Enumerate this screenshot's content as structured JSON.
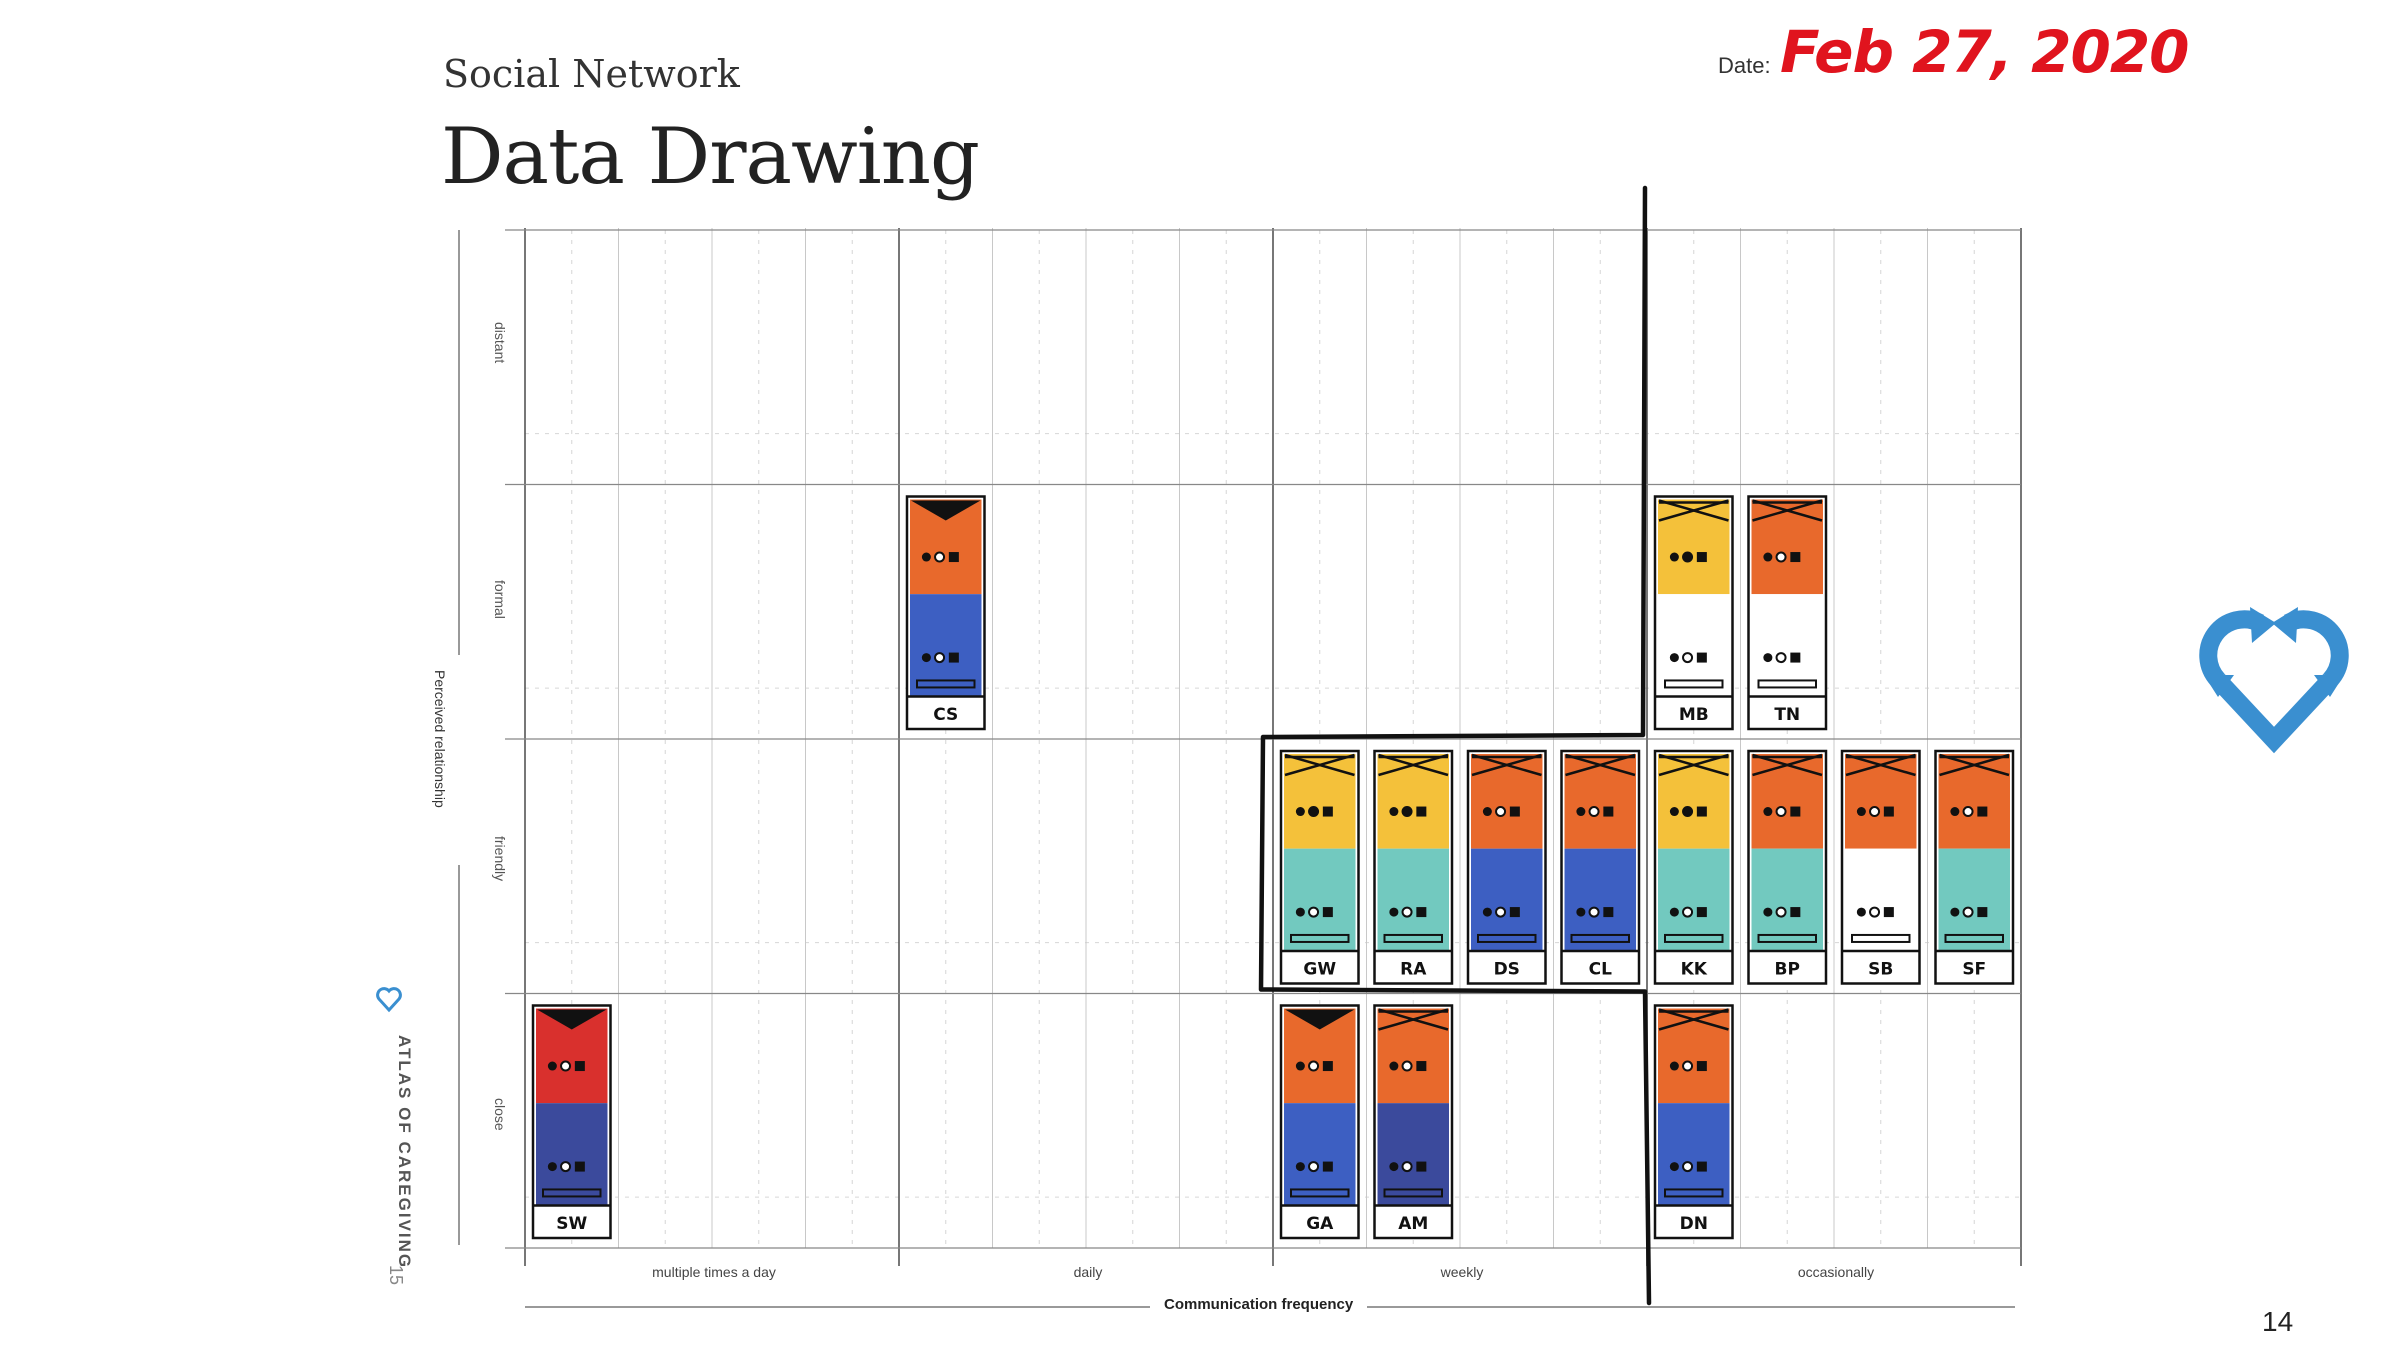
{
  "header": {
    "subtitle": "Social Network",
    "title": "Data Drawing",
    "date_label": "Date:",
    "date_value": "Feb 27, 2020"
  },
  "page_number": "14",
  "branding": {
    "atlas_text": "ATLAS OF CAREGIVING",
    "atlas_page": "15",
    "heart_icon": "heart-arrows-icon",
    "heart_color": "#3a8fd0"
  },
  "chart": {
    "x_axis_title": "Communication frequency",
    "y_axis_title": "Perceived relationship",
    "columns": [
      "multiple times a day",
      "daily",
      "weekly",
      "occasionally"
    ],
    "rows": [
      "distant",
      "formal",
      "friendly",
      "close"
    ],
    "colors": {
      "orange": "#e8692c",
      "yellow": "#f4c13a",
      "teal": "#72c9bf",
      "blue": "#3d5fc2",
      "navy": "#3b4a9c",
      "red": "#d9302d",
      "white": "#ffffff"
    },
    "cards": [
      {
        "name": "CS",
        "col": 4,
        "row": 1,
        "top": "orange",
        "bottom": "blue",
        "mark": "v"
      },
      {
        "name": "MB",
        "col": 12,
        "row": 1,
        "top": "yellow",
        "bottom": "white",
        "mark": "x"
      },
      {
        "name": "TN",
        "col": 13,
        "row": 1,
        "top": "orange",
        "bottom": "white",
        "mark": "x"
      },
      {
        "name": "GW",
        "col": 8,
        "row": 2,
        "top": "yellow",
        "bottom": "teal",
        "mark": "x"
      },
      {
        "name": "RA",
        "col": 9,
        "row": 2,
        "top": "yellow",
        "bottom": "teal",
        "mark": "x"
      },
      {
        "name": "DS",
        "col": 10,
        "row": 2,
        "top": "orange",
        "bottom": "blue",
        "mark": "x"
      },
      {
        "name": "CL",
        "col": 11,
        "row": 2,
        "top": "orange",
        "bottom": "blue",
        "mark": "x"
      },
      {
        "name": "KK",
        "col": 12,
        "row": 2,
        "top": "yellow",
        "bottom": "teal",
        "mark": "x"
      },
      {
        "name": "BP",
        "col": 13,
        "row": 2,
        "top": "orange",
        "bottom": "teal",
        "mark": "x"
      },
      {
        "name": "SB",
        "col": 14,
        "row": 2,
        "top": "orange",
        "bottom": "white",
        "mark": "x"
      },
      {
        "name": "SF",
        "col": 15,
        "row": 2,
        "top": "orange",
        "bottom": "teal",
        "mark": "x"
      },
      {
        "name": "SW",
        "col": 0,
        "row": 3,
        "top": "red",
        "bottom": "navy",
        "mark": "v"
      },
      {
        "name": "GA",
        "col": 8,
        "row": 3,
        "top": "orange",
        "bottom": "blue",
        "mark": "v"
      },
      {
        "name": "AM",
        "col": 9,
        "row": 3,
        "top": "orange",
        "bottom": "navy",
        "mark": "x"
      },
      {
        "name": "DN",
        "col": 12,
        "row": 3,
        "top": "orange",
        "bottom": "blue",
        "mark": "x"
      }
    ]
  }
}
